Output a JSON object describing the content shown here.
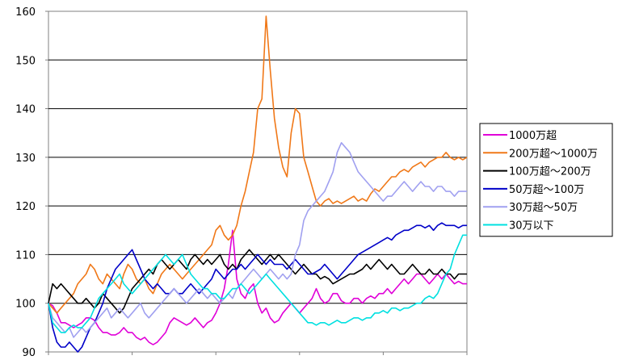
{
  "chart_data": {
    "type": "line",
    "title": "",
    "xlabel": "",
    "ylabel": "",
    "ylim": [
      90,
      160
    ],
    "yticks": [
      90,
      100,
      110,
      120,
      130,
      140,
      150,
      160
    ],
    "grid": "horizontal",
    "legend": "right",
    "x": [
      0,
      1,
      2,
      3,
      4,
      5,
      6,
      7,
      8,
      9,
      10,
      11,
      12,
      13,
      14,
      15,
      16,
      17,
      18,
      19,
      20,
      21,
      22,
      23,
      24,
      25,
      26,
      27,
      28,
      29,
      30,
      31,
      32,
      33,
      34,
      35,
      36,
      37,
      38,
      39,
      40,
      41,
      42,
      43,
      44,
      45,
      46,
      47,
      48,
      49,
      50,
      51,
      52,
      53,
      54,
      55,
      56,
      57,
      58,
      59,
      60,
      61,
      62,
      63,
      64,
      65,
      66,
      67,
      68,
      69,
      70,
      71,
      72,
      73,
      74,
      75,
      76,
      77,
      78,
      79,
      80,
      81,
      82,
      83,
      84,
      85,
      86,
      87,
      88,
      89,
      90,
      91,
      92,
      93,
      94,
      95,
      96,
      97,
      98,
      99,
      100
    ],
    "series": [
      {
        "name": "1000万超",
        "color": "#e000d8",
        "values": [
          100,
          99.5,
          98,
          96,
          96,
          95.5,
          95,
          95.5,
          96,
          97,
          97,
          96.5,
          95,
          94,
          94,
          93.5,
          93.5,
          94,
          95,
          94,
          94,
          93,
          92.5,
          93,
          92,
          91.5,
          92,
          93,
          94,
          96,
          97,
          96.5,
          96,
          95.5,
          96,
          97,
          96,
          95,
          96,
          96.5,
          98,
          100,
          103,
          108,
          115,
          105,
          102,
          101,
          103,
          104,
          100,
          98,
          99,
          97,
          96,
          96.5,
          98,
          99,
          100,
          99,
          98,
          99,
          100,
          101,
          103,
          101,
          100,
          100.5,
          102,
          102,
          100.5,
          100,
          100,
          101,
          101,
          100,
          101,
          101.5,
          101,
          102,
          102,
          103,
          102,
          103,
          104,
          105,
          104,
          105,
          106,
          106,
          105,
          104,
          105,
          106,
          105,
          106,
          105,
          104,
          104.5,
          104,
          104
        ]
      },
      {
        "name": "200万超～1000万",
        "color": "#f07818",
        "values": [
          100,
          99,
          98,
          99,
          100,
          101,
          102,
          104,
          105,
          106,
          108,
          107,
          105,
          104,
          106,
          105,
          104,
          103,
          106,
          108,
          107,
          105,
          104,
          105,
          103,
          102,
          104,
          106,
          107,
          108,
          107,
          106,
          105,
          106,
          107,
          108,
          109,
          110,
          111,
          112,
          115,
          116,
          114,
          113,
          114,
          116,
          120,
          123,
          127,
          131,
          140,
          142,
          159,
          148,
          138,
          132,
          128,
          126,
          135,
          140,
          139,
          130,
          127,
          124,
          121,
          120,
          121,
          121.5,
          120.5,
          121,
          120.5,
          121,
          121.5,
          122,
          121,
          121.5,
          121,
          122.5,
          123.5,
          123,
          124,
          125,
          126,
          126,
          127,
          127.5,
          127,
          128,
          128.5,
          129,
          128,
          129,
          129.5,
          130,
          130,
          131,
          130,
          129.5,
          130,
          129.5,
          130
        ]
      },
      {
        "name": "100万超～200万",
        "color": "#000000",
        "values": [
          100,
          104,
          103,
          104,
          103,
          102,
          101,
          100,
          100,
          101,
          100,
          99,
          100,
          102,
          101,
          100,
          99,
          98,
          99,
          101,
          103,
          104,
          105,
          106,
          107,
          106,
          108,
          109,
          108,
          107,
          108,
          109,
          108,
          107,
          109,
          110,
          109,
          108,
          109,
          108,
          109,
          110,
          108,
          107,
          108,
          107,
          109,
          110,
          111,
          110,
          109,
          108,
          109,
          110,
          109,
          110,
          109,
          108,
          107,
          106,
          107,
          108,
          107,
          106,
          106,
          105,
          105.5,
          105,
          104,
          104.5,
          105,
          105.5,
          106,
          106,
          106.5,
          107,
          108,
          107,
          108,
          109,
          108,
          107,
          108,
          107,
          106,
          106,
          107,
          108,
          107,
          106,
          106,
          107,
          106,
          106,
          107,
          106,
          106,
          105,
          106,
          106,
          106
        ]
      },
      {
        "name": "50万超～100万",
        "color": "#0000c8",
        "values": [
          100,
          95,
          92,
          91,
          91,
          92,
          91,
          90,
          91,
          93,
          95,
          96,
          98,
          100,
          103,
          105,
          107,
          108,
          109,
          110,
          111,
          109,
          107,
          105,
          104,
          103,
          104,
          103,
          102,
          102,
          103,
          102,
          102,
          103,
          104,
          103,
          102,
          103,
          104,
          105,
          107,
          106,
          105,
          106,
          107,
          107,
          108,
          107,
          108,
          109,
          110,
          109,
          108,
          109,
          108,
          108,
          108,
          107,
          108,
          109,
          108,
          107,
          106,
          106,
          106.5,
          107,
          108,
          107,
          106,
          105,
          106,
          107,
          108,
          109,
          110,
          110.5,
          111,
          111.5,
          112,
          112.5,
          113,
          113.5,
          113,
          114,
          114.5,
          115,
          115,
          115.5,
          116,
          116,
          115.5,
          116,
          115,
          116,
          116.5,
          116,
          116,
          116,
          115.5,
          116,
          116
        ]
      },
      {
        "name": "30万超～50万",
        "color": "#a0a0f0",
        "values": [
          100,
          97,
          96,
          95,
          94,
          95,
          93,
          94,
          95,
          94,
          95,
          96,
          97,
          98,
          99,
          97,
          98,
          99,
          98,
          97,
          98,
          99,
          100,
          98,
          97,
          98,
          99,
          100,
          101,
          102,
          103,
          102,
          101,
          100,
          101,
          102,
          103,
          102,
          101,
          102,
          101,
          100,
          101,
          102,
          101,
          103,
          104,
          105,
          106,
          107,
          106,
          105,
          106,
          107,
          106,
          105,
          106,
          105,
          106,
          110,
          112,
          117,
          119,
          120,
          121,
          122,
          123,
          125,
          127,
          131,
          133,
          132,
          131,
          129,
          127,
          126,
          125,
          124,
          123,
          122,
          121,
          122,
          122,
          123,
          124,
          125,
          124,
          123,
          124,
          125,
          124,
          124,
          123,
          124,
          124,
          123,
          123,
          122,
          123,
          123,
          123
        ]
      },
      {
        "name": "30万以下",
        "color": "#00e0e0",
        "values": [
          100,
          96,
          95,
          94,
          94,
          95,
          95.5,
          95,
          95,
          96,
          97,
          99,
          101,
          102,
          103,
          104,
          105,
          106,
          104,
          103,
          102,
          103,
          104,
          105,
          106,
          107,
          108,
          109,
          110,
          109,
          108,
          109,
          110,
          108,
          106,
          105,
          104,
          103,
          103,
          102,
          102,
          101,
          101,
          102,
          103,
          103,
          104,
          103,
          102,
          103,
          104,
          105,
          106,
          105,
          104,
          103,
          102,
          101,
          100,
          99,
          98,
          97,
          96,
          96,
          95.5,
          96,
          96,
          95.5,
          96,
          96.5,
          96,
          96,
          96.5,
          97,
          97,
          96.5,
          97,
          97,
          98,
          98,
          98.5,
          98,
          99,
          99,
          98.5,
          99,
          99,
          99.5,
          100,
          100,
          101,
          101.5,
          101,
          102,
          104,
          106,
          107,
          110,
          112,
          114,
          114
        ]
      }
    ]
  }
}
